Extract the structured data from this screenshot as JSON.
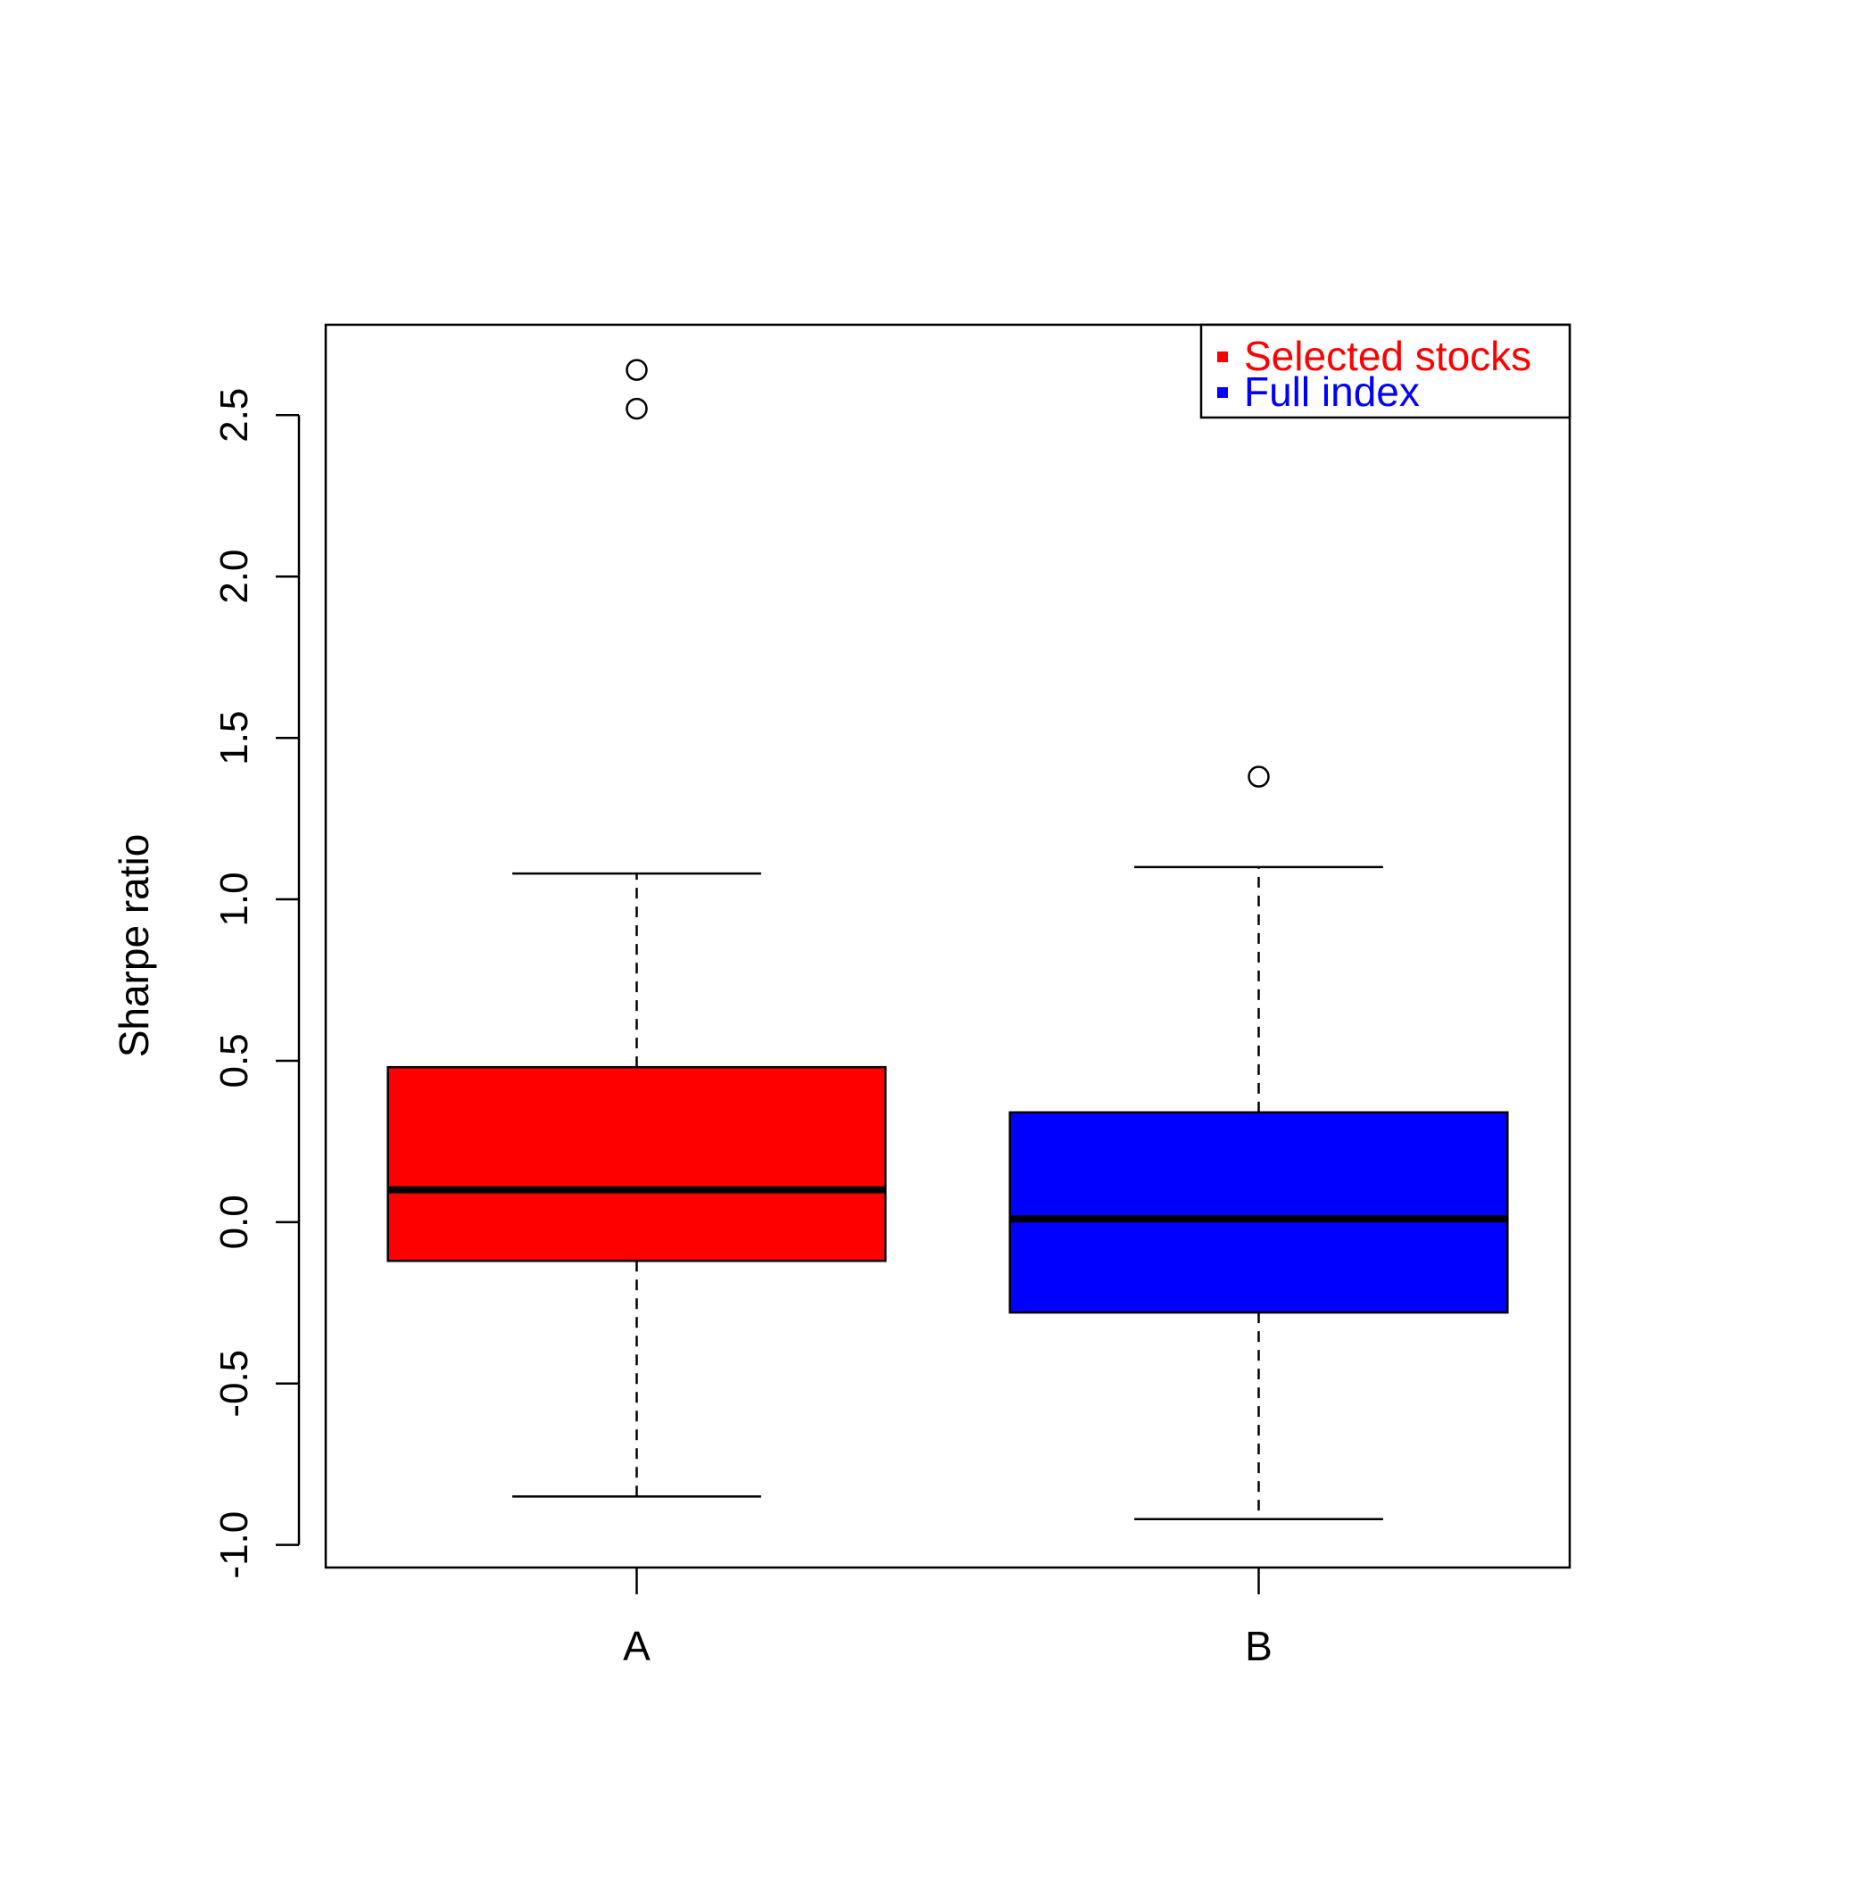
{
  "chart_data": {
    "type": "boxplot",
    "title": "",
    "xlabel": "",
    "ylabel": "Sharpe ratio",
    "ylim": [
      -1.07,
      2.78
    ],
    "yticks": [
      -1.0,
      -0.5,
      0.0,
      0.5,
      1.0,
      1.5,
      2.0,
      2.5
    ],
    "ytick_labels": [
      "-1.0",
      "-0.5",
      "0.0",
      "0.5",
      "1.0",
      "1.5",
      "2.0",
      "2.5"
    ],
    "categories": [
      "A",
      "B"
    ],
    "series": [
      {
        "category": "A",
        "color": "#ff0000",
        "whisker_low": -0.85,
        "q1": -0.12,
        "median": 0.1,
        "q3": 0.48,
        "whisker_high": 1.08,
        "outliers": [
          2.52,
          2.64
        ]
      },
      {
        "category": "B",
        "color": "#0000ff",
        "whisker_low": -0.92,
        "q1": -0.28,
        "median": 0.01,
        "q3": 0.34,
        "whisker_high": 1.1,
        "outliers": [
          1.38
        ]
      }
    ],
    "legend": {
      "position": "top-right",
      "entries": [
        {
          "label": "Selected stocks",
          "color": "#ff0000"
        },
        {
          "label": "Full index",
          "color": "#0000ff"
        }
      ]
    },
    "grid": false
  }
}
